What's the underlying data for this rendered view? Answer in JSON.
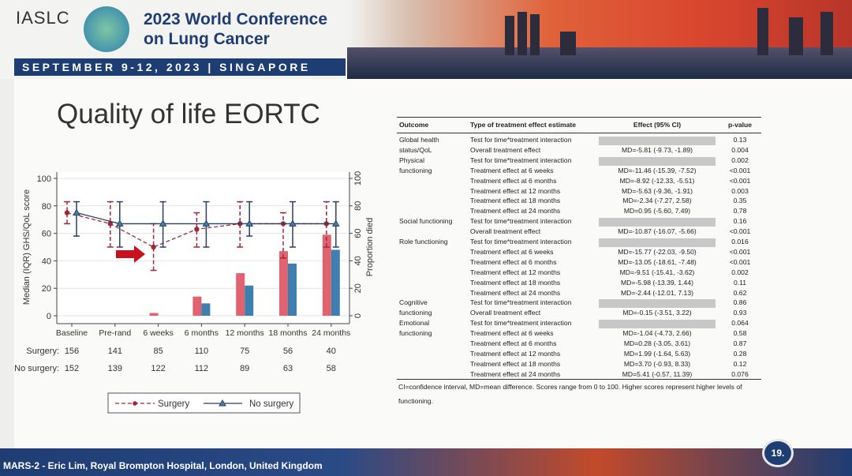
{
  "header": {
    "org": "IASLC",
    "conference": [
      "2023 World Conference",
      "on Lung Cancer"
    ],
    "dates": "SEPTEMBER 9-12, 2023 | SINGAPORE"
  },
  "slide": {
    "title": "Quality of life EORTC",
    "number": "19.",
    "credit": "MARS-2 - Eric Lim, Royal Brompton Hospital, London, United Kingdom"
  },
  "chart_data": {
    "type": "line+bar",
    "categories": [
      "Baseline",
      "Pre-rand",
      "6 weeks",
      "6 months",
      "12 months",
      "18 months",
      "24 months"
    ],
    "ylabel": "Median (IQR) GHS/QoL score",
    "y2label": "Proportion died",
    "ylim": [
      0,
      100
    ],
    "y2lim": [
      0,
      100
    ],
    "yticks": [
      "0",
      "20",
      "40",
      "60",
      "80",
      "100"
    ],
    "series": [
      {
        "name": "Surgery",
        "color": "#a0283a",
        "style": "dashed",
        "marker": "circle",
        "median": [
          75,
          67,
          50,
          63,
          67,
          67,
          67
        ],
        "q1": [
          67,
          50,
          33,
          50,
          50,
          42,
          50
        ],
        "q3": [
          83,
          83,
          67,
          75,
          83,
          75,
          83
        ],
        "died": [
          0,
          0,
          2,
          14,
          31,
          47,
          59
        ],
        "bar_color": "#e06470"
      },
      {
        "name": "No surgery",
        "color": "#2b3f5c",
        "style": "solid",
        "marker": "triangle",
        "median": [
          75,
          67,
          67,
          67,
          67,
          67,
          67
        ],
        "q1": [
          58,
          50,
          50,
          50,
          58,
          50,
          50
        ],
        "q3": [
          83,
          83,
          83,
          83,
          83,
          83,
          83
        ],
        "died": [
          0,
          0,
          0,
          9,
          22,
          38,
          48
        ],
        "bar_color": "#3f7fb0"
      }
    ],
    "n_at_risk": [
      {
        "label": "Surgery:",
        "values": [
          "156",
          "141",
          "85",
          "110",
          "75",
          "56",
          "40"
        ]
      },
      {
        "label": "No surgery:",
        "values": [
          "152",
          "139",
          "122",
          "112",
          "89",
          "63",
          "58"
        ]
      }
    ],
    "legend": {
      "placement": "bottom",
      "items": [
        "Surgery",
        "No surgery"
      ]
    },
    "annotation": "red arrow pointing at 6 weeks surgery median"
  },
  "table": {
    "headers": [
      "Outcome",
      "Type of treatment effect estimate",
      "Effect (95% CI)",
      "p-value"
    ],
    "rows": [
      [
        "Global health",
        "Test for time*treatment interaction",
        "",
        "0.13"
      ],
      [
        "status/QoL",
        "Overall treatment effect",
        "MD=-5.81 (-9.73, -1.89)",
        "0.004"
      ],
      [
        "Physical",
        "Test for time*treatment interaction",
        "",
        "0.002"
      ],
      [
        "functioning",
        "Treatment effect at 6 weeks",
        "MD=-11.46 (-15.39, -7.52)",
        "<0.001"
      ],
      [
        "",
        "Treatment effect at 6 months",
        "MD=-8.92 (-12.33, -5.51)",
        "<0.001"
      ],
      [
        "",
        "Treatment effect at 12 months",
        "MD=-5.63 (-9.36, -1.91)",
        "0.003"
      ],
      [
        "",
        "Treatment effect at 18 months",
        "MD=-2.34 (-7.27, 2.58)",
        "0.35"
      ],
      [
        "",
        "Treatment effect at 24 months",
        "MD=0.95 (-5.60, 7.49)",
        "0.78"
      ],
      [
        "Social functioning",
        "Test for time*treatment interaction",
        "",
        "0.16"
      ],
      [
        "",
        "Overall treatment effect",
        "MD=-10.87 (-16.07, -5.66)",
        "<0.001"
      ],
      [
        "Role functioning",
        "Test for time*treatment interaction",
        "",
        "0.016"
      ],
      [
        "",
        "Treatment effect at 6 weeks",
        "MD=-15.77 (-22.03, -9.50)",
        "<0.001"
      ],
      [
        "",
        "Treatment effect at 6 months",
        "MD=-13.05 (-18.61, -7.48)",
        "<0.001"
      ],
      [
        "",
        "Treatment effect at 12 months",
        "MD=-9.51 (-15.41, -3.62)",
        "0.002"
      ],
      [
        "",
        "Treatment effect at 18 months",
        "MD=-5.98 (-13.39, 1.44)",
        "0.11"
      ],
      [
        "",
        "Treatment effect at 24 months",
        "MD=-2.44 (-12.01, 7.13)",
        "0.62"
      ],
      [
        "Cognitive",
        "Test for time*treatment interaction",
        "",
        "0.86"
      ],
      [
        "functioning",
        "Overall treatment effect",
        "MD=-0.15 (-3.51, 3.22)",
        "0.93"
      ],
      [
        "Emotional",
        "Test for time*treatment interaction",
        "",
        "0.064"
      ],
      [
        "functioning",
        "Treatment effect at 6 weeks",
        "MD=-1.04 (-4.73, 2.66)",
        "0.58"
      ],
      [
        "",
        "Treatment effect at 6 months",
        "MD=0.28 (-3.05, 3.61)",
        "0.87"
      ],
      [
        "",
        "Treatment effect at 12 months",
        "MD=1.99 (-1.64, 5.63)",
        "0.28"
      ],
      [
        "",
        "Treatment effect at 18 months",
        "MD=3.70 (-0.93, 8.33)",
        "0.12"
      ],
      [
        "",
        "Treatment effect at 24 months",
        "MD=5.41 (-0.57, 11.39)",
        "0.076"
      ]
    ],
    "footnote": "CI=confidence interval, MD=mean difference. Scores range from 0 to 100. Higher scores represent higher levels of functioning."
  }
}
